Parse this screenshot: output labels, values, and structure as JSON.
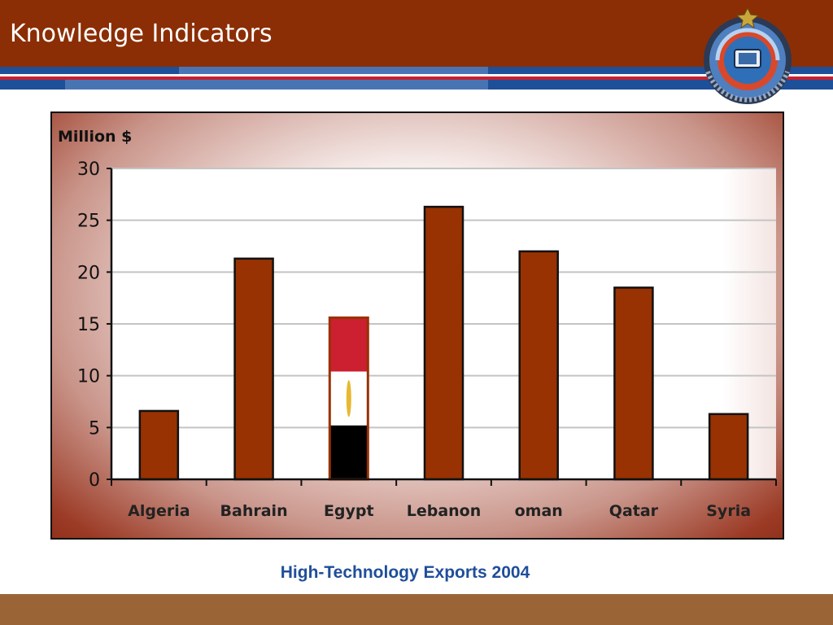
{
  "slide": {
    "title": "Knowledge Indicators",
    "caption": "High-Technology Exports 2004"
  },
  "colors": {
    "header": "#8b2e05",
    "bar": "#983202",
    "caption": "#1f4e9a",
    "footer": "#9a6436",
    "flag_red": "#cc1f2f",
    "flag_white": "#ffffff",
    "flag_black": "#000000"
  },
  "chart_data": {
    "type": "bar",
    "ylabel": "Million $",
    "categories": [
      "Algeria",
      "Bahrain",
      "Egypt",
      "Lebanon",
      "oman",
      "Qatar",
      "Syria"
    ],
    "values": [
      6.6,
      21.3,
      15.6,
      26.3,
      22.0,
      18.5,
      6.3
    ],
    "ylim": [
      0,
      30
    ],
    "yticks": [
      0,
      5,
      10,
      15,
      20,
      25,
      30
    ],
    "grid": true,
    "highlight": {
      "category": "Egypt",
      "style": "egyptian-flag"
    }
  }
}
